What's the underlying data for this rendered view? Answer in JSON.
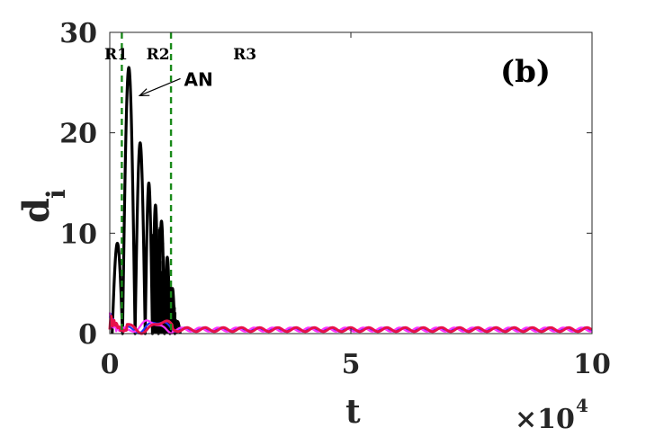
{
  "chart_data": {
    "type": "line",
    "title": "",
    "xlabel": "t",
    "ylabel": "d",
    "ylabel_subscript": "i",
    "x_multiplier_label": "×10",
    "x_multiplier_exp": "4",
    "xlim": [
      0,
      100000
    ],
    "ylim": [
      0,
      30
    ],
    "x_ticks": [
      0,
      50000,
      100000
    ],
    "x_tick_labels": [
      "0",
      "5",
      "10"
    ],
    "y_ticks": [
      0,
      10,
      20,
      30
    ],
    "y_tick_labels": [
      "0",
      "10",
      "20",
      "30"
    ],
    "grid": false,
    "legend": "none",
    "panel_label": "(b)",
    "region_labels": [
      {
        "text": "R1",
        "x": 1300,
        "y": 27.3
      },
      {
        "text": "R2",
        "x": 10000,
        "y": 27.3
      },
      {
        "text": "R3",
        "x": 28000,
        "y": 27.3
      }
    ],
    "vlines": [
      {
        "x": 2500,
        "color": "#1a8a1a",
        "style": "dashed"
      },
      {
        "x": 12700,
        "color": "#1a8a1a",
        "style": "dashed"
      }
    ],
    "annotation": {
      "text": "AN",
      "text_x": 15400,
      "text_y": 25.3,
      "arrow_to_x": 6200,
      "arrow_to_y": 23.7
    },
    "series_colors": {
      "black": "#000000",
      "blue": "#2233ff",
      "magenta": "#ff33ff",
      "red": "#e8104a"
    },
    "peaks": [
      {
        "x": 1300,
        "y": 9.0
      },
      {
        "x": 4000,
        "y": 26.5
      },
      {
        "x": 6500,
        "y": 19.0
      },
      {
        "x": 8200,
        "y": 15.0
      },
      {
        "x": 9500,
        "y": 12.8
      },
      {
        "x": 10700,
        "y": 11.2
      },
      {
        "x": 12000,
        "y": 7.6
      },
      {
        "x": 13000,
        "y": 4.5
      },
      {
        "x": 14000,
        "y": 1.2
      }
    ],
    "baseline_level": 0.4,
    "baseline_amplitude": 0.2
  }
}
